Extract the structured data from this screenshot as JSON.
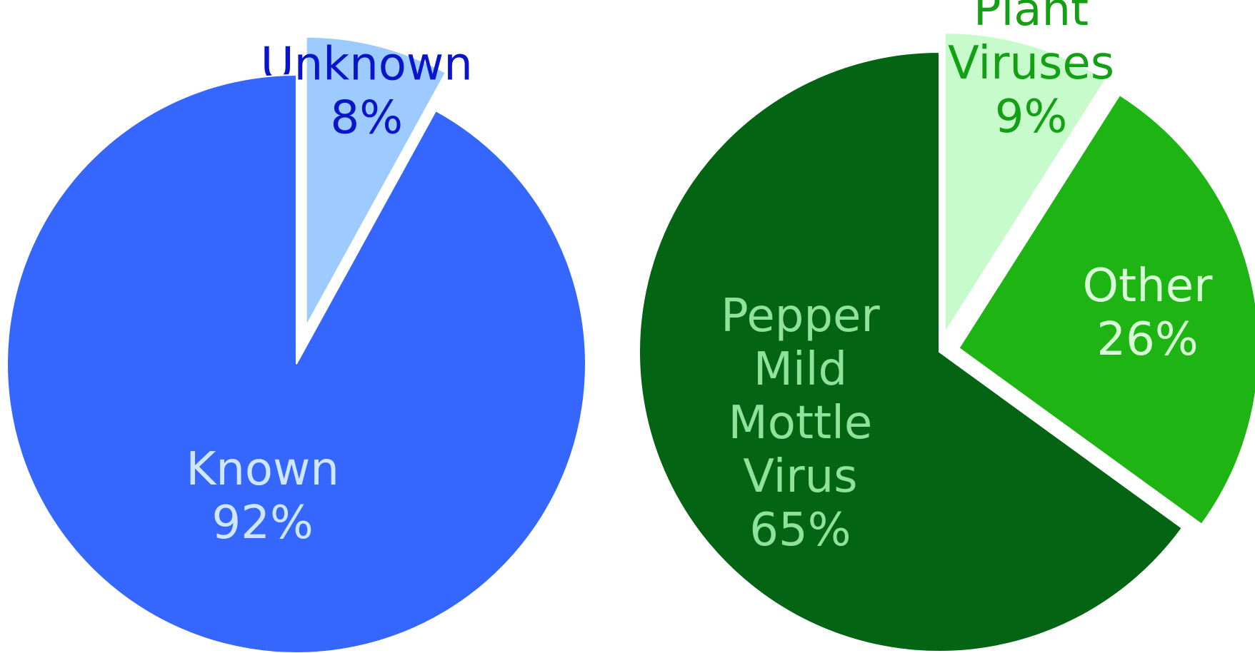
{
  "chart_data": [
    {
      "type": "pie",
      "slices": [
        {
          "label": "Unknown",
          "value": 8,
          "pct_label": "8%",
          "color": "#9dcbff",
          "label_color": "#0a14c8",
          "exploded": true
        },
        {
          "label": "Known",
          "value": 92,
          "pct_label": "92%",
          "color": "#3567ff",
          "label_color": "#cfe6ff",
          "exploded": false
        }
      ]
    },
    {
      "type": "pie",
      "slices": [
        {
          "label": "Other Plant Viruses",
          "value": 9,
          "pct_label": "9%",
          "color": "#c8fbcc",
          "label_color": "#14a014",
          "exploded": true
        },
        {
          "label": "Other",
          "value": 26,
          "pct_label": "26%",
          "color": "#1eb414",
          "label_color": "#d9ffd9",
          "exploded": true
        },
        {
          "label": "Pepper Mild Mottle Virus",
          "value": 65,
          "pct_label": "65%",
          "color": "#036413",
          "label_color": "#8fe29a",
          "exploded": false
        }
      ]
    }
  ]
}
